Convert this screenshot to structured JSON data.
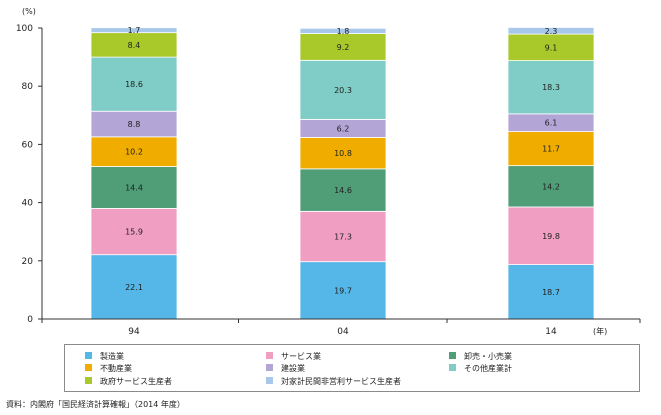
{
  "chart_data": {
    "type": "bar",
    "stacked": true,
    "categories": [
      "94",
      "04",
      "14"
    ],
    "y_unit_label": "(%)",
    "x_unit_label": "(年)",
    "ylim": [
      0,
      100
    ],
    "y_ticks": [
      0,
      20,
      40,
      60,
      80,
      100
    ],
    "grid": false,
    "legend_placement": "bottom",
    "series": [
      {
        "name": "製造業",
        "color": "#55b6e8",
        "values": [
          22.1,
          19.7,
          18.7
        ],
        "labels": [
          "22.1",
          "19.7",
          "18.7"
        ]
      },
      {
        "name": "サービス業",
        "color": "#f19ec3",
        "values": [
          15.9,
          17.3,
          19.8
        ],
        "labels": [
          "15.9",
          "17.3",
          "19.8"
        ]
      },
      {
        "name": "卸売・小売業",
        "color": "#4f9e77",
        "values": [
          14.4,
          14.6,
          14.2
        ],
        "labels": [
          "14.4",
          "14.6",
          "14.2"
        ]
      },
      {
        "name": "不動産業",
        "color": "#f0ad00",
        "values": [
          10.2,
          10.8,
          11.7
        ],
        "labels": [
          "10.2",
          "10.8",
          "11.7"
        ]
      },
      {
        "name": "建設業",
        "color": "#b3a6d6",
        "values": [
          8.8,
          6.2,
          6.1
        ],
        "labels": [
          "8.8",
          "6.2",
          "6.1"
        ]
      },
      {
        "name": "その他産業計",
        "color": "#7fcdc6",
        "values": [
          18.6,
          20.3,
          18.3
        ],
        "labels": [
          "18.6",
          "20.3",
          "18.3"
        ]
      },
      {
        "name": "政府サービス生産者",
        "color": "#a9c92a",
        "values": [
          8.4,
          9.2,
          9.1
        ],
        "labels": [
          "8.4",
          "9.2",
          "9.1"
        ]
      },
      {
        "name": "対家計民間非営利サービス生産者",
        "color": "#a7c8ea",
        "values": [
          1.7,
          1.8,
          2.3
        ],
        "labels": [
          "1.7",
          "1.8",
          "2.3"
        ]
      }
    ]
  },
  "source_note": "資料：内閣府「国民経済計算確報」（2014 年度）"
}
